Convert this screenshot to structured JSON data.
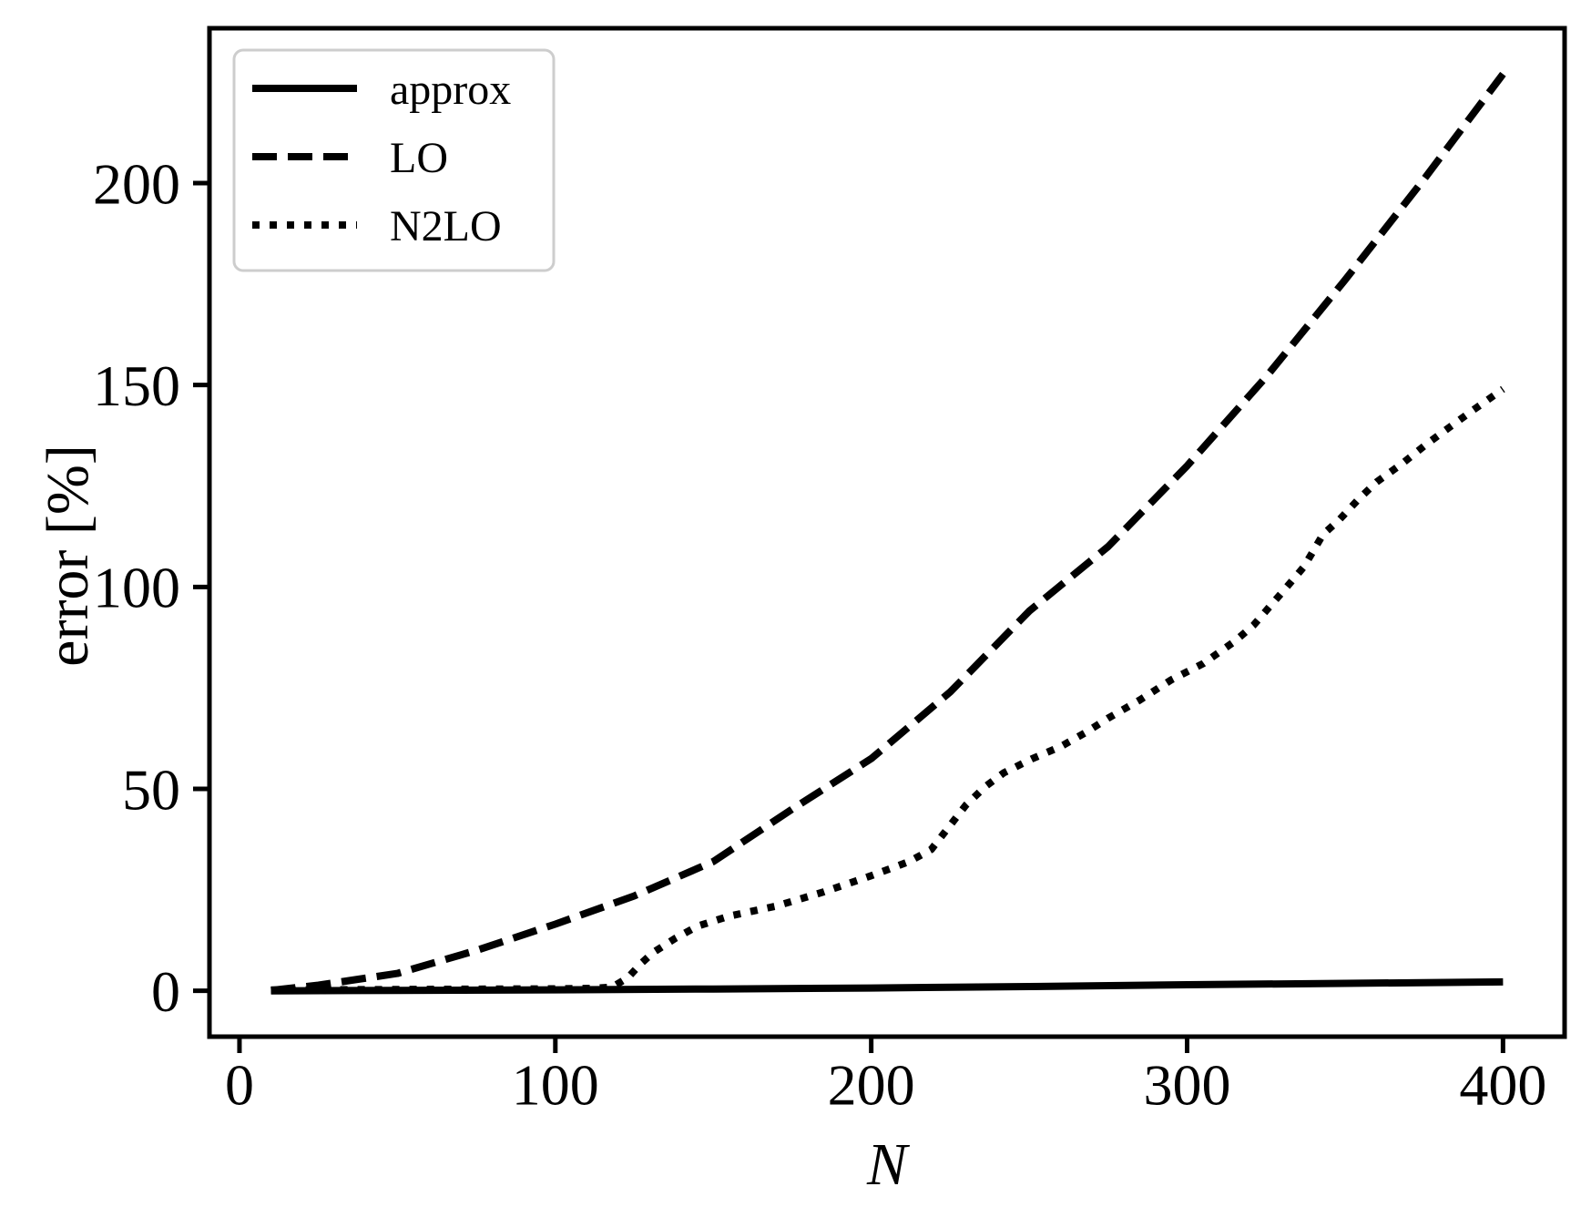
{
  "figure": {
    "background": "#ffffff",
    "line_color": "#000000",
    "legend_border_color": "#cdcdcd"
  },
  "chart_data": {
    "type": "line",
    "title": "",
    "xlabel": "N",
    "ylabel": "error [%]",
    "xlim": [
      -9.5,
      419.5
    ],
    "ylim": [
      -11.35,
      238.35
    ],
    "xticks": [
      0,
      100,
      200,
      300,
      400
    ],
    "yticks": [
      0,
      50,
      100,
      150,
      200
    ],
    "grid": false,
    "legend_position": "upper-left",
    "legend_entries": [
      "approx",
      "LO",
      "N2LO"
    ],
    "series": [
      {
        "name": "approx",
        "linestyle": "solid",
        "color": "#000000",
        "x": [
          10,
          50,
          100,
          150,
          200,
          250,
          300,
          350,
          400
        ],
        "y": [
          0.0,
          0.1,
          0.25,
          0.45,
          0.7,
          1.05,
          1.5,
          1.85,
          2.2
        ]
      },
      {
        "name": "LO",
        "linestyle": "dashed",
        "color": "#000000",
        "x": [
          10,
          25,
          50,
          75,
          100,
          125,
          150,
          175,
          200,
          225,
          250,
          275,
          300,
          325,
          350,
          375,
          400
        ],
        "y": [
          0.1,
          1.4,
          4.3,
          10,
          16.5,
          23.5,
          32,
          45,
          57.5,
          74,
          94,
          110,
          130,
          152,
          176,
          201,
          227
        ]
      },
      {
        "name": "N2LO",
        "linestyle": "dotted",
        "color": "#000000",
        "x": [
          10,
          40,
          70,
          100,
          112,
          118,
          123,
          127,
          131,
          138,
          145,
          155,
          170,
          185,
          200,
          212,
          219,
          225,
          230,
          236,
          242,
          251,
          260,
          268,
          275,
          285,
          295,
          305,
          315,
          321,
          326,
          331,
          337,
          343,
          348,
          354,
          360,
          368,
          376,
          383,
          390,
          400
        ],
        "y": [
          0.2,
          0.3,
          0.4,
          0.5,
          0.6,
          0.9,
          3.3,
          6.7,
          9.5,
          13,
          16,
          18.5,
          21,
          24.5,
          28.5,
          32,
          35,
          41,
          46,
          50.5,
          54,
          57.5,
          60.5,
          64,
          67.5,
          72,
          77,
          81,
          86.5,
          90.5,
          95,
          99.5,
          105,
          113,
          116.5,
          121.5,
          126,
          130.5,
          135.5,
          139.5,
          143.5,
          149
        ]
      }
    ]
  }
}
